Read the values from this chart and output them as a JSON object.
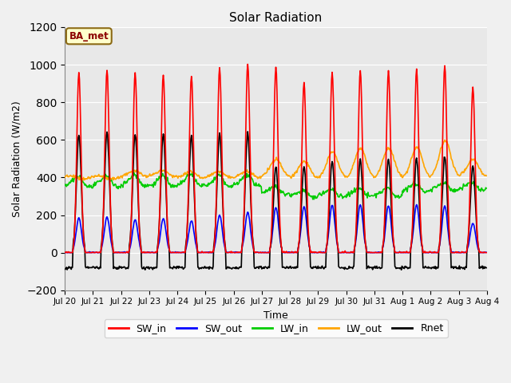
{
  "title": "Solar Radiation",
  "xlabel": "Time",
  "ylabel": "Solar Radiation (W/m2)",
  "ylim": [
    -200,
    1200
  ],
  "yticks": [
    -200,
    0,
    200,
    400,
    600,
    800,
    1000,
    1200
  ],
  "fig_facecolor": "#f0f0f0",
  "plot_bg_color": "#e8e8e8",
  "annotation_text": "BA_met",
  "annotation_color": "#8B0000",
  "annotation_bg": "#FFFFCC",
  "annotation_border": "#8B6914",
  "series": {
    "SW_in": {
      "color": "#FF0000",
      "lw": 1.2
    },
    "SW_out": {
      "color": "#0000FF",
      "lw": 1.2
    },
    "LW_in": {
      "color": "#00CC00",
      "lw": 1.2
    },
    "LW_out": {
      "color": "#FFA500",
      "lw": 1.2
    },
    "Rnet": {
      "color": "#000000",
      "lw": 1.2
    }
  },
  "n_days": 15,
  "dt_minutes": 30,
  "x_tick_labels": [
    "Jul 20",
    "Jul 21",
    "Jul 22",
    "Jul 23",
    "Jul 24",
    "Jul 25",
    "Jul 26",
    "Jul 27",
    "Jul 28",
    "Jul 29",
    "Jul 30",
    "Jul 31",
    "Aug 1",
    "Aug 2",
    "Aug 3",
    "Aug 4"
  ],
  "SW_in_peaks": [
    960,
    970,
    955,
    945,
    940,
    985,
    1000,
    985,
    905,
    960,
    970,
    965,
    975,
    995,
    880
  ],
  "SW_out_peaks": [
    185,
    190,
    175,
    180,
    170,
    200,
    215,
    240,
    245,
    255,
    255,
    250,
    255,
    250,
    155
  ],
  "Rnet_peaks": [
    630,
    640,
    635,
    630,
    620,
    635,
    635,
    455,
    460,
    490,
    495,
    495,
    505,
    515,
    465
  ],
  "Rnet_night": [
    -80,
    -80,
    -80,
    -80,
    -80,
    -80,
    -80,
    -80,
    -80,
    -80,
    -80,
    -80,
    -80,
    -80,
    -80
  ],
  "LW_out_base": [
    400,
    400,
    400,
    400,
    395,
    395,
    395,
    400,
    390,
    390,
    390,
    390,
    390,
    400,
    400
  ],
  "LW_out_day_extra": [
    0,
    0,
    40,
    40,
    40,
    40,
    40,
    100,
    100,
    150,
    170,
    170,
    175,
    200,
    100
  ],
  "LW_in_base": [
    355,
    355,
    360,
    355,
    360,
    355,
    360,
    320,
    300,
    305,
    305,
    305,
    330,
    335,
    340
  ],
  "LW_in_bump": [
    50,
    55,
    55,
    55,
    55,
    55,
    55,
    30,
    30,
    30,
    35,
    35,
    35,
    35,
    30
  ]
}
